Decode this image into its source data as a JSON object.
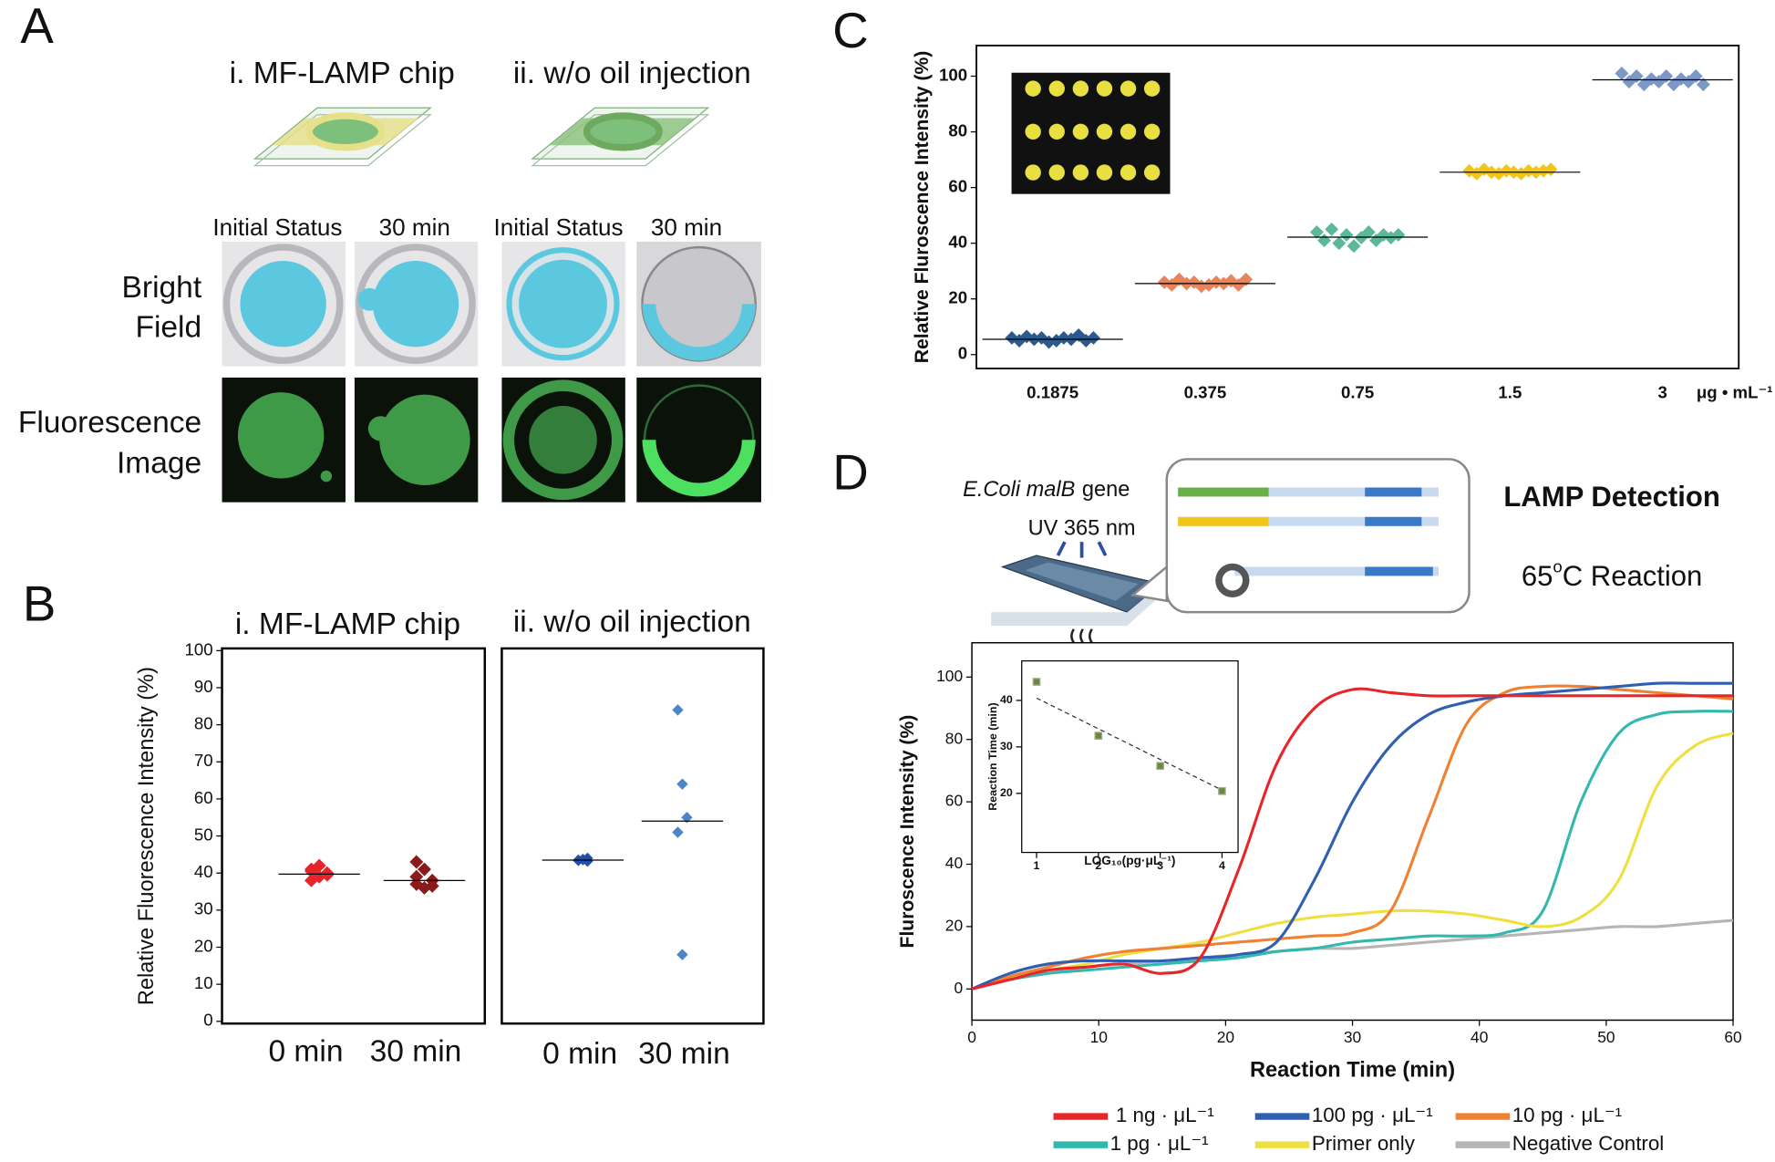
{
  "panel_a": {
    "letter": "A",
    "titles": [
      "i. MF-LAMP chip",
      "ii. w/o oil injection"
    ],
    "columns": [
      "Initial Status",
      "30 min",
      "Initial Status",
      "30 min"
    ],
    "rows": [
      [
        "Bright",
        "Field"
      ],
      [
        "Fluorescence",
        "Image"
      ]
    ]
  },
  "panel_labels": {
    "b": "B",
    "c": "C",
    "d": "D"
  },
  "diagram": {
    "gene": [
      "E.Coli malB",
      "gene"
    ],
    "uv": "UV 365 nm",
    "detection": "LAMP Detection",
    "reaction": [
      "65",
      "o",
      "C Reaction"
    ]
  },
  "chart_data": [
    {
      "type": "strip",
      "title": "i. MF-LAMP chip",
      "y_label": "Relative Fluorescence Intensity (%)",
      "ylim": [
        -0.6,
        100.6
      ],
      "yticks": [
        0,
        10,
        20,
        30,
        40,
        50,
        60,
        70,
        80,
        90,
        100
      ],
      "groups": [
        {
          "category": "0 min",
          "color": "#e8232a",
          "values": [
            38,
            39,
            40,
            41,
            42,
            39.5,
            40.5
          ],
          "mean": 39.7
        },
        {
          "category": "30 min",
          "color": "#8b1a1a",
          "values": [
            43,
            41,
            38,
            37,
            36,
            36.5,
            39
          ],
          "mean": 38
        }
      ]
    },
    {
      "type": "strip",
      "title": "ii. w/o oil injection",
      "ylim": [
        -0.6,
        100.6
      ],
      "groups": [
        {
          "category": "0 min",
          "color": "#1f4fa8",
          "values": [
            43.5,
            43.7,
            44,
            43.4,
            43.6,
            43.2
          ],
          "mean": 43.5
        },
        {
          "category": "30 min",
          "color": "#4a86c8",
          "values": [
            84,
            64,
            55,
            51,
            18
          ],
          "mean": 54
        }
      ]
    },
    {
      "type": "strip",
      "y_label": "Relative Fluroscence Intensity (%)",
      "x_unit": "μg • mL⁻¹",
      "ylim": [
        -5,
        111
      ],
      "yticks": [
        0,
        20,
        40,
        60,
        80,
        100
      ],
      "groups": [
        {
          "category": "0.1875",
          "color": "#2a5a8f",
          "values": [
            6,
            5,
            6.5,
            5.5,
            6,
            4.5,
            5,
            6,
            5.5,
            7,
            5,
            6
          ],
          "mean": 5.5
        },
        {
          "category": "0.375",
          "color": "#e8835a",
          "values": [
            26,
            25,
            27,
            25.5,
            26,
            24.5,
            25,
            26,
            25.5,
            26.5,
            25,
            27
          ],
          "mean": 25.5
        },
        {
          "category": "0.75",
          "color": "#5cb89a",
          "values": [
            44,
            41,
            45,
            40,
            43,
            39,
            42,
            44,
            41,
            43,
            42,
            43
          ],
          "mean": 42.2
        },
        {
          "category": "1.5",
          "color": "#f2c618",
          "values": [
            66,
            65,
            66.5,
            65.5,
            65,
            66,
            65.5,
            65,
            66,
            65.5,
            66,
            66.5
          ],
          "mean": 65.5
        },
        {
          "category": "3",
          "color": "#7b98c8",
          "values": [
            101,
            98,
            100,
            97,
            99,
            98,
            100,
            97,
            99,
            98,
            100,
            97
          ],
          "mean": 98.7
        }
      ]
    },
    {
      "type": "line",
      "x_label": "Reaction Time (min)",
      "y_label": "Fluroscence Intensity (%)",
      "x": [
        0,
        3,
        6,
        9,
        12,
        15,
        18,
        21,
        24,
        27,
        30,
        33,
        36,
        39,
        42,
        45,
        48,
        51,
        54,
        57,
        60
      ],
      "xlim": [
        0,
        60
      ],
      "xticks": [
        0,
        10,
        20,
        30,
        40,
        50,
        60
      ],
      "ylim": [
        -10,
        111
      ],
      "yticks": [
        0,
        20,
        40,
        60,
        80,
        100
      ],
      "series": [
        {
          "name": "1 ng · μL⁻¹",
          "color": "#e8262a",
          "values": [
            0,
            3,
            6,
            7,
            8,
            5,
            10,
            38,
            72,
            90,
            96,
            95,
            94,
            94,
            94,
            94,
            94,
            94,
            94,
            94,
            94
          ]
        },
        {
          "name": "100 pg · μL⁻¹",
          "color": "#2e5fb0",
          "values": [
            0,
            5,
            8,
            9,
            9,
            9,
            10,
            11,
            15,
            35,
            60,
            78,
            88,
            92,
            94,
            95,
            96,
            97,
            98,
            98,
            98
          ]
        },
        {
          "name": "10 pg · μL⁻¹",
          "color": "#f08032",
          "values": [
            0,
            4,
            7,
            10,
            12,
            13,
            14,
            15,
            16,
            17,
            18,
            25,
            55,
            85,
            95,
            97,
            97,
            96,
            95,
            94,
            93
          ]
        },
        {
          "name": "1 pg · μL⁻¹",
          "color": "#33b8b0",
          "values": [
            0,
            3,
            5,
            6,
            7,
            8,
            9,
            10,
            12,
            13,
            15,
            16,
            17,
            17,
            18,
            25,
            60,
            82,
            88,
            89,
            89
          ]
        },
        {
          "name": "Primer only",
          "color": "#eee040",
          "values": [
            0,
            4,
            6,
            8,
            11,
            13,
            15,
            18,
            21,
            23,
            24,
            25,
            25,
            24,
            22,
            20,
            23,
            35,
            65,
            78,
            82
          ]
        },
        {
          "name": "Negative Control",
          "color": "#b5b5b5",
          "values": [
            0,
            3,
            5,
            7,
            8,
            9,
            10,
            11,
            12,
            13,
            13,
            14,
            15,
            16,
            17,
            18,
            19,
            20,
            20,
            21,
            22
          ]
        }
      ]
    },
    {
      "type": "scatter",
      "x_label": "LOG₁₀(pg·μL⁻¹)",
      "y_label": "Reaction Time (min)",
      "x": [
        1,
        2,
        3,
        4
      ],
      "values": [
        44,
        32.4,
        25.9,
        20.5
      ],
      "color": "#6a8a3a",
      "xlim": [
        0.76,
        4.26
      ],
      "ylim": [
        7.3,
        48.5
      ],
      "xticks": [
        1,
        2,
        3,
        4
      ],
      "yticks": [
        20,
        30,
        40
      ],
      "trend": {
        "x": [
          1,
          4
        ],
        "values": [
          40.5,
          20.7
        ]
      }
    }
  ]
}
